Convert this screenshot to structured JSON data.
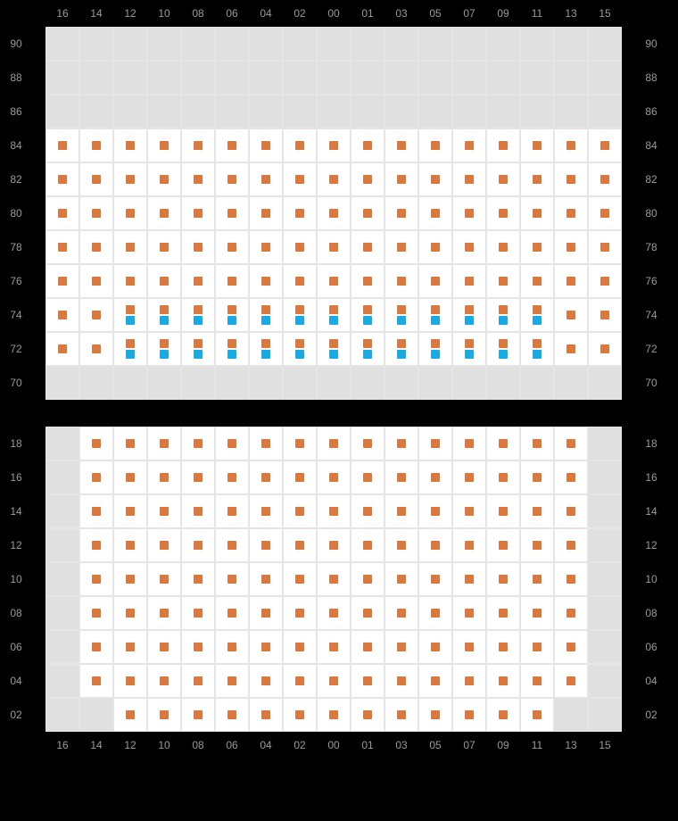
{
  "columns": [
    "16",
    "14",
    "12",
    "10",
    "08",
    "06",
    "04",
    "02",
    "00",
    "01",
    "03",
    "05",
    "07",
    "09",
    "11",
    "13",
    "15"
  ],
  "section1": {
    "rows": [
      {
        "label": "90",
        "cells": [
          "u",
          "u",
          "u",
          "u",
          "u",
          "u",
          "u",
          "u",
          "u",
          "u",
          "u",
          "u",
          "u",
          "u",
          "u",
          "u",
          "u"
        ]
      },
      {
        "label": "88",
        "cells": [
          "u",
          "u",
          "u",
          "u",
          "u",
          "u",
          "u",
          "u",
          "u",
          "u",
          "u",
          "u",
          "u",
          "u",
          "u",
          "u",
          "u"
        ]
      },
      {
        "label": "86",
        "cells": [
          "u",
          "u",
          "u",
          "u",
          "u",
          "u",
          "u",
          "u",
          "u",
          "u",
          "u",
          "u",
          "u",
          "u",
          "u",
          "u",
          "u"
        ]
      },
      {
        "label": "84",
        "cells": [
          "o",
          "o",
          "o",
          "o",
          "o",
          "o",
          "o",
          "o",
          "o",
          "o",
          "o",
          "o",
          "o",
          "o",
          "o",
          "o",
          "o"
        ]
      },
      {
        "label": "82",
        "cells": [
          "o",
          "o",
          "o",
          "o",
          "o",
          "o",
          "o",
          "o",
          "o",
          "o",
          "o",
          "o",
          "o",
          "o",
          "o",
          "o",
          "o"
        ]
      },
      {
        "label": "80",
        "cells": [
          "o",
          "o",
          "o",
          "o",
          "o",
          "o",
          "o",
          "o",
          "o",
          "o",
          "o",
          "o",
          "o",
          "o",
          "o",
          "o",
          "o"
        ]
      },
      {
        "label": "78",
        "cells": [
          "o",
          "o",
          "o",
          "o",
          "o",
          "o",
          "o",
          "o",
          "o",
          "o",
          "o",
          "o",
          "o",
          "o",
          "o",
          "o",
          "o"
        ]
      },
      {
        "label": "76",
        "cells": [
          "o",
          "o",
          "o",
          "o",
          "o",
          "o",
          "o",
          "o",
          "o",
          "o",
          "o",
          "o",
          "o",
          "o",
          "o",
          "o",
          "o"
        ]
      },
      {
        "label": "74",
        "cells": [
          "o",
          "o",
          "ob",
          "ob",
          "ob",
          "ob",
          "ob",
          "ob",
          "ob",
          "ob",
          "ob",
          "ob",
          "ob",
          "ob",
          "ob",
          "o",
          "o"
        ]
      },
      {
        "label": "72",
        "cells": [
          "o",
          "o",
          "ob",
          "ob",
          "ob",
          "ob",
          "ob",
          "ob",
          "ob",
          "ob",
          "ob",
          "ob",
          "ob",
          "ob",
          "ob",
          "o",
          "o"
        ]
      },
      {
        "label": "70",
        "cells": [
          "u",
          "u",
          "u",
          "u",
          "u",
          "u",
          "u",
          "u",
          "u",
          "u",
          "u",
          "u",
          "u",
          "u",
          "u",
          "u",
          "u"
        ]
      }
    ]
  },
  "section2": {
    "rows": [
      {
        "label": "18",
        "cells": [
          "u",
          "o",
          "o",
          "o",
          "o",
          "o",
          "o",
          "o",
          "o",
          "o",
          "o",
          "o",
          "o",
          "o",
          "o",
          "o",
          "u"
        ]
      },
      {
        "label": "16",
        "cells": [
          "u",
          "o",
          "o",
          "o",
          "o",
          "o",
          "o",
          "o",
          "o",
          "o",
          "o",
          "o",
          "o",
          "o",
          "o",
          "o",
          "u"
        ]
      },
      {
        "label": "14",
        "cells": [
          "u",
          "o",
          "o",
          "o",
          "o",
          "o",
          "o",
          "o",
          "o",
          "o",
          "o",
          "o",
          "o",
          "o",
          "o",
          "o",
          "u"
        ]
      },
      {
        "label": "12",
        "cells": [
          "u",
          "o",
          "o",
          "o",
          "o",
          "o",
          "o",
          "o",
          "o",
          "o",
          "o",
          "o",
          "o",
          "o",
          "o",
          "o",
          "u"
        ]
      },
      {
        "label": "10",
        "cells": [
          "u",
          "o",
          "o",
          "o",
          "o",
          "o",
          "o",
          "o",
          "o",
          "o",
          "o",
          "o",
          "o",
          "o",
          "o",
          "o",
          "u"
        ]
      },
      {
        "label": "08",
        "cells": [
          "u",
          "o",
          "o",
          "o",
          "o",
          "o",
          "o",
          "o",
          "o",
          "o",
          "o",
          "o",
          "o",
          "o",
          "o",
          "o",
          "u"
        ]
      },
      {
        "label": "06",
        "cells": [
          "u",
          "o",
          "o",
          "o",
          "o",
          "o",
          "o",
          "o",
          "o",
          "o",
          "o",
          "o",
          "o",
          "o",
          "o",
          "o",
          "u"
        ]
      },
      {
        "label": "04",
        "cells": [
          "u",
          "o",
          "o",
          "o",
          "o",
          "o",
          "o",
          "o",
          "o",
          "o",
          "o",
          "o",
          "o",
          "o",
          "o",
          "o",
          "u"
        ]
      },
      {
        "label": "02",
        "cells": [
          "u",
          "u",
          "o",
          "o",
          "o",
          "o",
          "o",
          "o",
          "o",
          "o",
          "o",
          "o",
          "o",
          "o",
          "o",
          "u",
          "u"
        ]
      }
    ]
  },
  "colors": {
    "orange": "#d9783f",
    "blue": "#1ba9e1",
    "unavailable": "#e0e0e0",
    "grid_border": "#e5e5e5",
    "label": "#999999",
    "background": "#000000"
  }
}
